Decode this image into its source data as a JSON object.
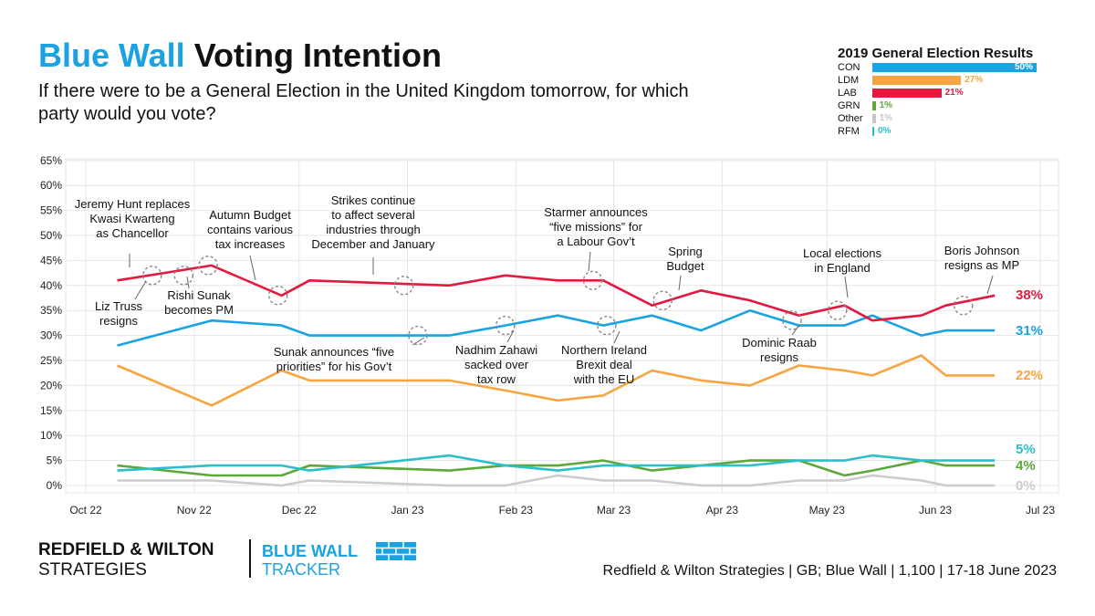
{
  "header": {
    "title_part1": "Blue Wall",
    "title_part2": "Voting Intention",
    "subtitle": "If there were to be a General Election in the United Kingdom tomorrow, for which party would you vote?"
  },
  "results_2019": {
    "title": "2019 General Election Results",
    "rows": [
      {
        "label": "CON",
        "value": 50,
        "text": "50%",
        "color": "#1aa3e3"
      },
      {
        "label": "LDM",
        "value": 27,
        "text": "27%",
        "color": "#f7a541"
      },
      {
        "label": "LAB",
        "value": 21,
        "text": "21%",
        "color": "#e4193f"
      },
      {
        "label": "GRN",
        "value": 1,
        "text": "1%",
        "color": "#5ba83c"
      },
      {
        "label": "Other",
        "value": 1,
        "text": "1%",
        "color": "#c8c8c8"
      },
      {
        "label": "RFM",
        "value": 0,
        "text": "0%",
        "color": "#2bc0c9"
      }
    ]
  },
  "chart_data": {
    "type": "line",
    "ylim": [
      0,
      65
    ],
    "y_ticks": [
      "0%",
      "5%",
      "10%",
      "15%",
      "20%",
      "25%",
      "30%",
      "35%",
      "40%",
      "45%",
      "50%",
      "55%",
      "60%",
      "65%"
    ],
    "x_ticks": [
      "Oct 22",
      "Nov 22",
      "Dec 22",
      "Jan 23",
      "Feb 23",
      "Mar 23",
      "Apr 23",
      "May 23",
      "Jun 23",
      "Jul 23"
    ],
    "grid": true,
    "x_dates": [
      "2022-10-10",
      "2022-11-06",
      "2022-11-26",
      "2022-12-04",
      "2023-01-13",
      "2023-01-29",
      "2023-02-13",
      "2023-02-26",
      "2023-03-12",
      "2023-03-26",
      "2023-04-09",
      "2023-04-23",
      "2023-05-06",
      "2023-05-14",
      "2023-05-28",
      "2023-06-04",
      "2023-06-18"
    ],
    "series": [
      {
        "name": "LAB",
        "color": "#e4193f",
        "end_label": "38%",
        "values": [
          41,
          44,
          38,
          41,
          40,
          42,
          41,
          41,
          36,
          39,
          37,
          34,
          36,
          33,
          34,
          36,
          38
        ]
      },
      {
        "name": "CON",
        "color": "#1aa3e3",
        "end_label": "31%",
        "values": [
          28,
          33,
          32,
          30,
          30,
          32,
          34,
          32,
          34,
          31,
          35,
          32,
          32,
          34,
          30,
          31,
          31
        ]
      },
      {
        "name": "LDM",
        "color": "#f7a541",
        "end_label": "22%",
        "values": [
          24,
          16,
          23,
          21,
          21,
          19,
          17,
          18,
          23,
          21,
          20,
          24,
          23,
          22,
          26,
          22,
          22
        ]
      },
      {
        "name": "RFM",
        "color": "#2bc0c9",
        "end_label": "5%",
        "values": [
          3,
          4,
          4,
          3,
          6,
          4,
          3,
          4,
          4,
          4,
          4,
          5,
          5,
          6,
          5,
          5,
          5
        ]
      },
      {
        "name": "GRN",
        "color": "#5ba83c",
        "end_label": "4%",
        "values": [
          4,
          2,
          2,
          4,
          3,
          4,
          4,
          5,
          3,
          4,
          5,
          5,
          2,
          3,
          5,
          4,
          4
        ]
      },
      {
        "name": "Other",
        "color": "#cccccc",
        "end_label": "0%",
        "values": [
          1,
          1,
          0,
          1,
          0,
          0,
          2,
          1,
          1,
          0,
          0,
          1,
          1,
          2,
          1,
          0,
          0
        ]
      }
    ],
    "end_label_values": {
      "LAB": 38,
      "CON": 31,
      "LDM": 22,
      "RFM": 5,
      "GRN": 4,
      "Other": 0
    },
    "annotations": [
      {
        "lines": [
          "Jeremy Hunt replaces",
          "Kwasi Kwarteng",
          "as Chancellor"
        ],
        "date": "2022-10-20",
        "y": 42
      },
      {
        "lines": [
          "Liz Truss",
          "resigns"
        ],
        "date": "2022-10-29",
        "y": 42
      },
      {
        "lines": [
          "Rishi Sunak",
          "becomes PM"
        ],
        "date": "2022-11-05",
        "y": 44
      },
      {
        "lines": [
          "Autumn Budget",
          "contains various",
          "tax increases"
        ],
        "date": "2022-11-25",
        "y": 38
      },
      {
        "lines": [
          "Strikes continue",
          "to affect several",
          "industries through",
          "December and January"
        ],
        "date": "2022-12-31",
        "y": 40
      },
      {
        "lines": [
          "Sunak announces “five",
          "priorities” for his Gov’t"
        ],
        "date": "2023-01-04",
        "y": 30
      },
      {
        "lines": [
          "Nadhim Zahawi",
          "sacked over",
          "tax row"
        ],
        "date": "2023-01-29",
        "y": 32
      },
      {
        "lines": [
          "Starmer announces",
          "“five missions” for",
          "a Labour Gov’t"
        ],
        "date": "2023-02-23",
        "y": 41
      },
      {
        "lines": [
          "Northern Ireland",
          "Brexit deal",
          "with the EU"
        ],
        "date": "2023-02-27",
        "y": 32
      },
      {
        "lines": [
          "Spring",
          "Budget"
        ],
        "date": "2023-03-15",
        "y": 37
      },
      {
        "lines": [
          "Dominic Raab",
          "resigns"
        ],
        "date": "2023-04-21",
        "y": 33
      },
      {
        "lines": [
          "Local elections",
          "in England"
        ],
        "date": "2023-05-04",
        "y": 35
      },
      {
        "lines": [
          "Boris Johnson",
          "resigns as MP"
        ],
        "date": "2023-06-09",
        "y": 36
      }
    ]
  },
  "footer": {
    "logo_line1": "REDFIELD & WILTON",
    "logo_line2": "STRATEGIES",
    "tracker_line1": "BLUE WALL",
    "tracker_line2": "TRACKER",
    "source": "Redfield & Wilton Strategies | GB; Blue Wall | 1,100 | 17-18 June 2023"
  }
}
